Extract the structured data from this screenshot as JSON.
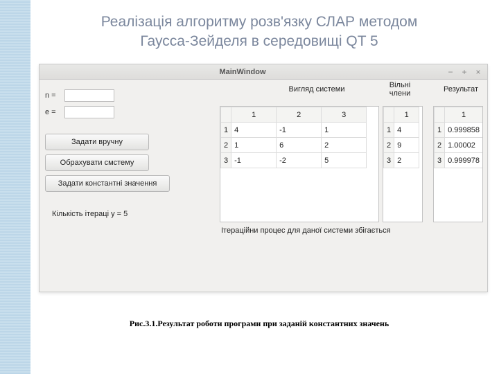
{
  "slide": {
    "title_line1": "Реалізація алгоритму розв'язку СЛАР методом",
    "title_line2": "Гаусса-Зейделя в середовищі QT 5",
    "figure_caption": "Рис.3.1.Результат роботи програми при заданій константних значень"
  },
  "window": {
    "title": "MainWindow",
    "minimize": "−",
    "maximize": "+",
    "close": "×"
  },
  "fields": {
    "n_label": "n =",
    "e_label": "e =",
    "n_value": "",
    "e_value": ""
  },
  "buttons": {
    "manual": "Задати вручну",
    "compute": "Обрахувати смстему",
    "constants": "Задати константні значення"
  },
  "iterations_label": "Кількість ітераці у = 5",
  "headers": {
    "system": "Вигляд системи",
    "free_l1": "Вільні",
    "free_l2": "члени",
    "result": "Результат"
  },
  "matrix": {
    "cols": [
      "1",
      "2",
      "3"
    ],
    "rows": [
      {
        "h": "1",
        "cells": [
          "4",
          "-1",
          "1"
        ]
      },
      {
        "h": "2",
        "cells": [
          "1",
          "6",
          "2"
        ]
      },
      {
        "h": "3",
        "cells": [
          "-1",
          "-2",
          "5"
        ]
      }
    ]
  },
  "free": {
    "cols": [
      "1"
    ],
    "rows": [
      {
        "h": "1",
        "cells": [
          "4"
        ]
      },
      {
        "h": "2",
        "cells": [
          "9"
        ]
      },
      {
        "h": "3",
        "cells": [
          "2"
        ]
      }
    ]
  },
  "result": {
    "cols": [
      "1"
    ],
    "rows": [
      {
        "h": "1",
        "cells": [
          "0.999858"
        ]
      },
      {
        "h": "2",
        "cells": [
          "1.00002"
        ]
      },
      {
        "h": "3",
        "cells": [
          "0.999978"
        ]
      }
    ]
  },
  "status": "Ітераційни процес для даної системи збігається",
  "colors": {
    "title_color": "#7b879d",
    "window_bg": "#f1f0ee",
    "stripe_light": "#c9dfed",
    "stripe_dark": "#bcd6e8"
  }
}
